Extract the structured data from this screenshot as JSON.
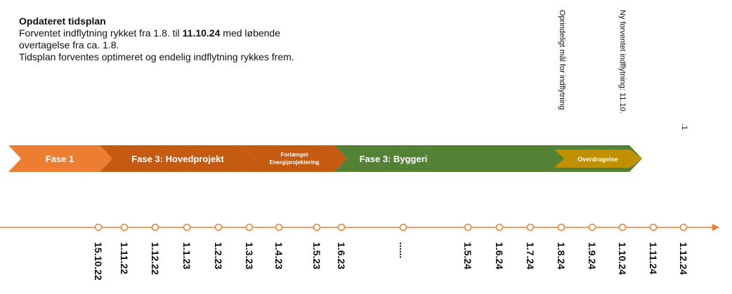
{
  "notes": {
    "title": "Opdateret tidsplan",
    "line1_pre": "Forventet indflytning rykket fra 1.8. til ",
    "line1_bold": "11.10.24",
    "line1_post": " med løbende",
    "line2": "overtagelse fra ca. 1.8.",
    "line3": "Tidsplan forventes optimeret og endelig indflytning rykkes frem."
  },
  "milestones": {
    "original": "Oprindeligt mål for indflytning",
    "new": "Ny forventet indflytning: 11.10.",
    "third": ".1"
  },
  "phases": [
    {
      "name": "Fase 1",
      "color": "#ed7d31"
    },
    {
      "name": "Fase 3: Hovedprojekt",
      "color": "#c55a11"
    },
    {
      "line1": "Forlænget",
      "line2": "Energiprojektering",
      "color": "#c55a11"
    },
    {
      "name": "Fase 3: Byggeri",
      "color": "#548235"
    },
    {
      "name": "Overdragelse",
      "color": "#bf9000"
    }
  ],
  "timeline": {
    "color": "#ed7d31",
    "dates": [
      "15.10.22",
      "1.11.22",
      "1.12.22",
      "1.1.23",
      "1.2.23",
      "1.3.23",
      "1.4.23",
      "1.5.23",
      "1.6.23",
      "......",
      "1.5.24",
      "1.6.24",
      "1.7.24",
      "1.8.24",
      "1.9.24",
      "1.10.24",
      "1.11.24",
      "1.12.24"
    ]
  }
}
